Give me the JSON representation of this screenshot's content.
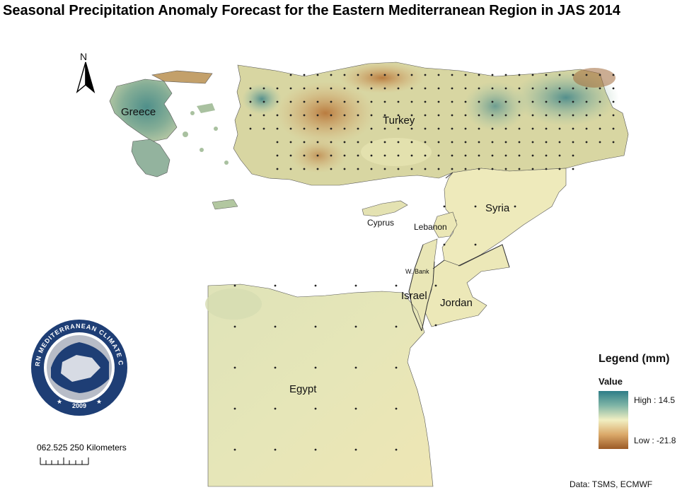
{
  "title": "Seasonal Precipitation Anomaly Forecast for the Eastern Mediterranean Region in JAS 2014",
  "north_arrow": {
    "label": "N"
  },
  "countries": {
    "greece": "Greece",
    "turkey": "Turkey",
    "syria": "Syria",
    "cyprus": "Cyprus",
    "lebanon": "Lebanon",
    "west_bank": "W. Bank",
    "israel": "Israel",
    "jordan": "Jordan",
    "egypt": "Egypt"
  },
  "logo": {
    "name": "EASTERN MEDITERRANEAN CLIMATE CENTRE",
    "year": "2009"
  },
  "scale_bar": {
    "label": "062.525   250 Kilometers"
  },
  "legend": {
    "title": "Legend (mm)",
    "subtitle": "Value",
    "high_label": "High : 14.5",
    "low_label": "Low : -21.8",
    "high_value": 14.5,
    "low_value": -21.8,
    "colors": {
      "high": "#2e7d87",
      "mid": "#f1efc2",
      "low": "#9b5a26"
    }
  },
  "data_source": "Data:  TSMS, ECMWF"
}
